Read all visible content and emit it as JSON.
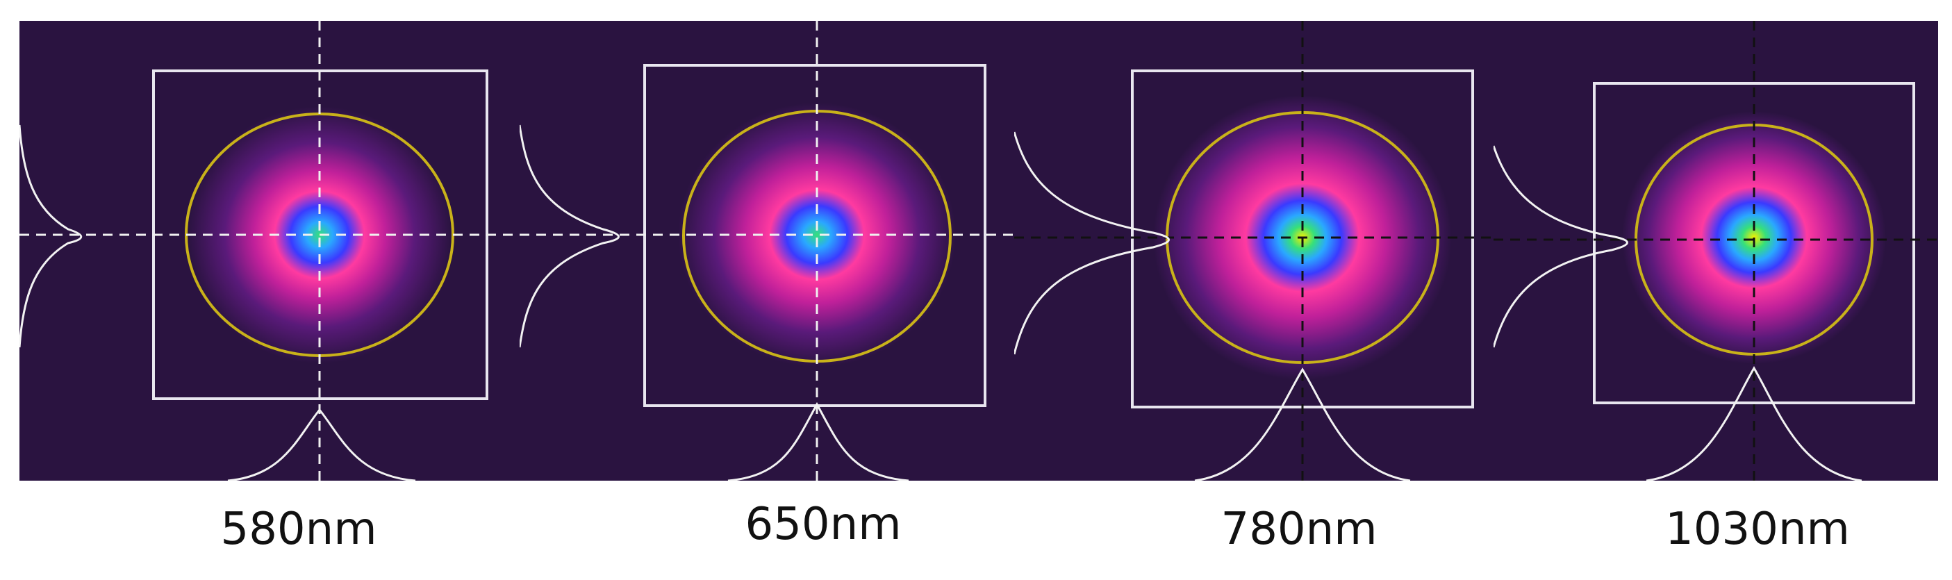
{
  "panels": [
    {
      "label": "580nm"
    },
    {
      "label": "650nm"
    },
    {
      "label": "780nm"
    },
    {
      "label": "1030nm"
    }
  ],
  "colors": {
    "background": "#2a1340",
    "roi_box": "#e8e6ef",
    "ellipse": "#c9b21a",
    "crosshair_light": "#f0f0f0",
    "crosshair_dark": "#111111",
    "profile": "#f2f2f2"
  },
  "beam_colormap": [
    "#2a1340",
    "#5a1a7a",
    "#c0209a",
    "#ff3aa0",
    "#3a3aff",
    "#2aa8ff",
    "#36e07a",
    "#f6f000",
    "#ffffff"
  ]
}
